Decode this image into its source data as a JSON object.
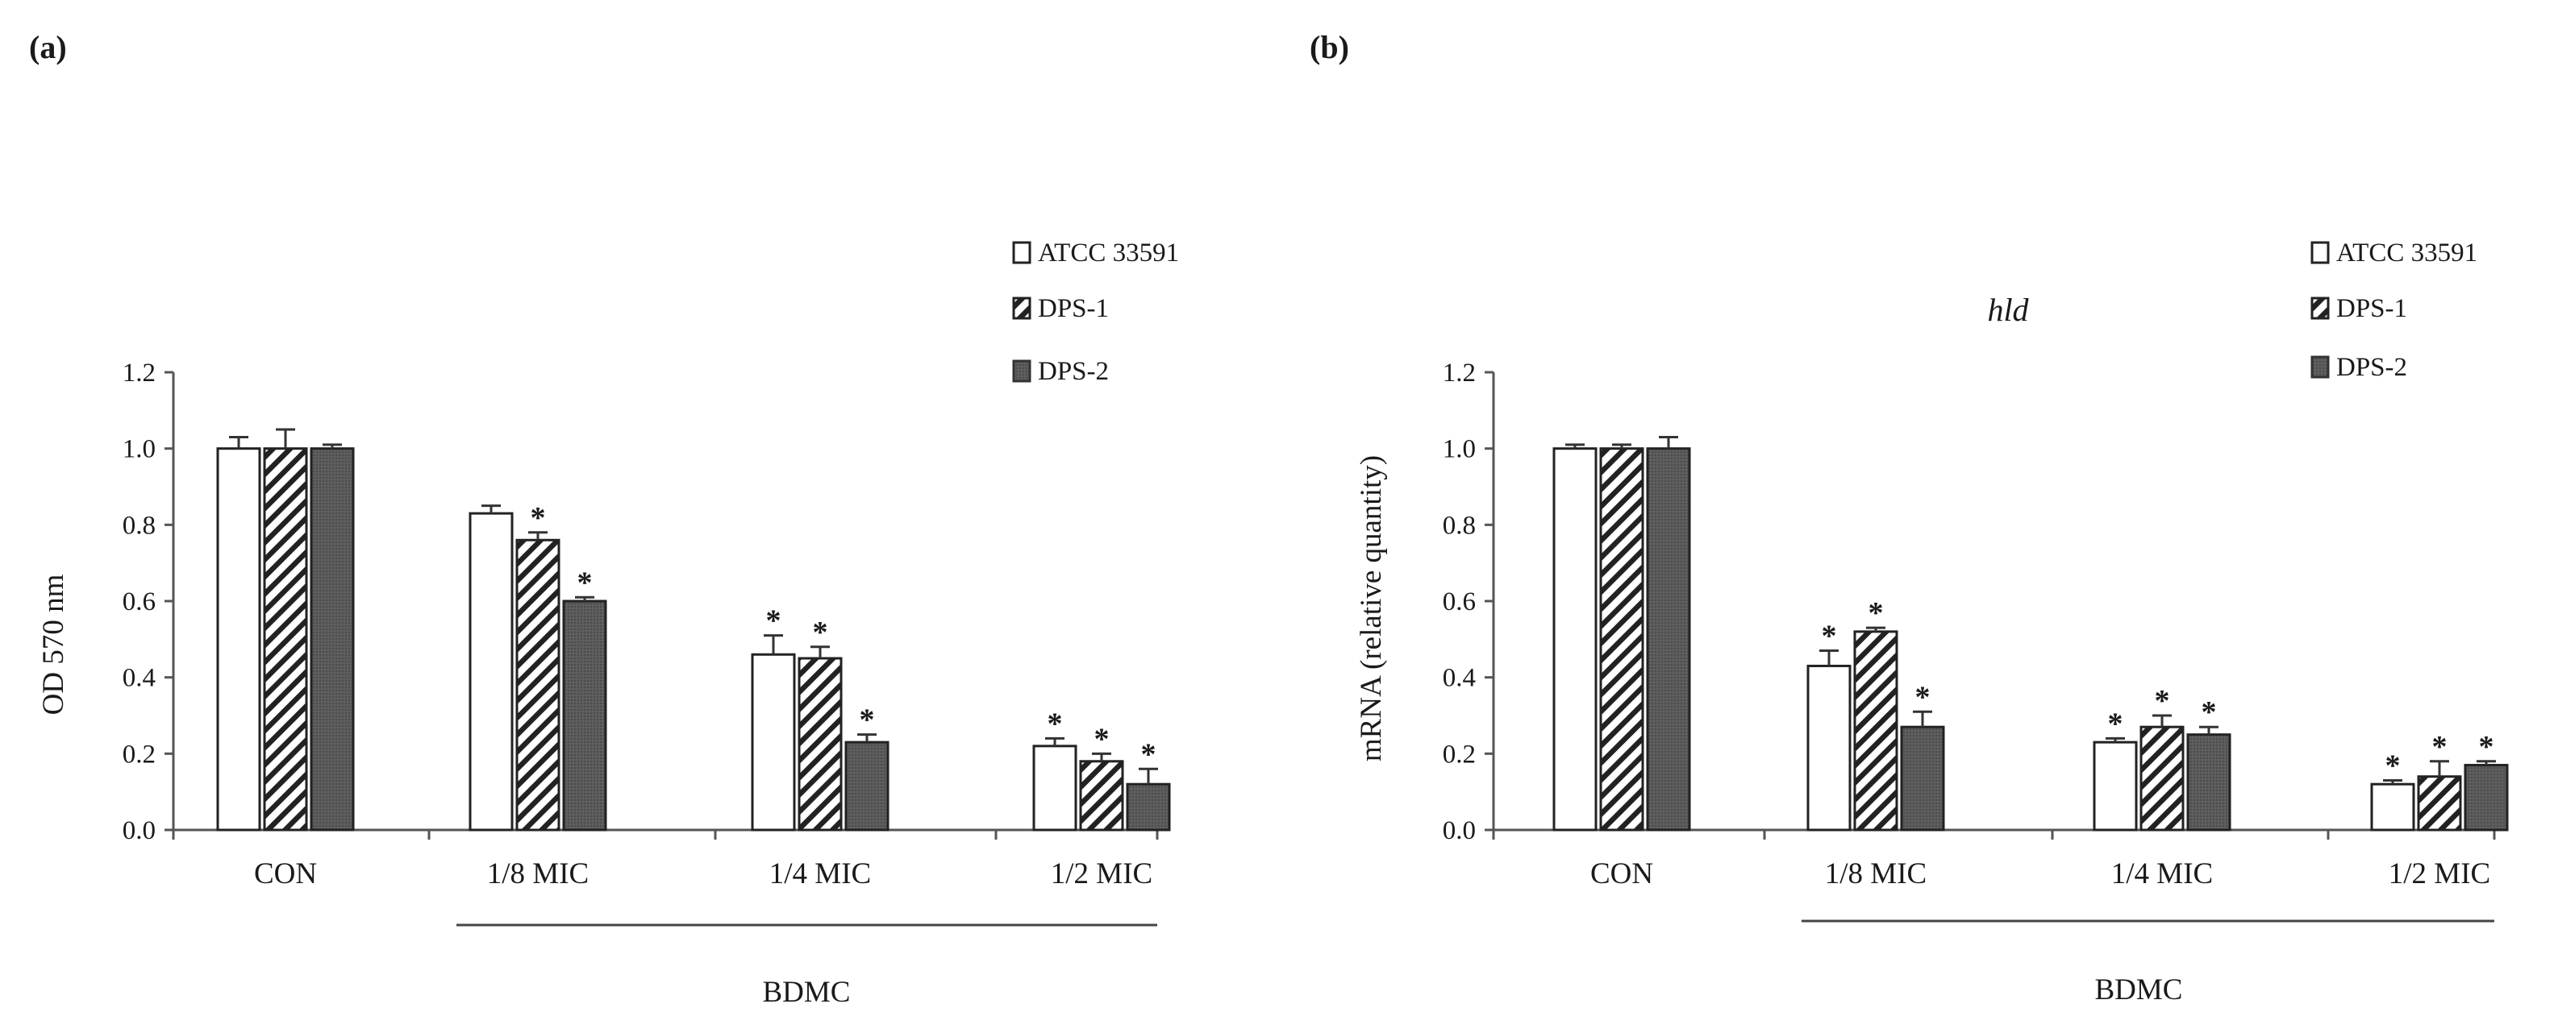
{
  "chart_data": [
    {
      "panel_label": "(a)",
      "type": "bar",
      "title": "",
      "xlabel": "",
      "ylabel": "OD 570 nm",
      "ylim": [
        0,
        1.2
      ],
      "yticks": [
        "0.0",
        "0.2",
        "0.4",
        "0.6",
        "0.8",
        "1.0",
        "1.2"
      ],
      "categories": [
        "CON",
        "1/8 MIC",
        "1/4 MIC",
        "1/2 MIC"
      ],
      "group_label": "BDMC",
      "group_span": [
        "1/8 MIC",
        "1/2 MIC"
      ],
      "legend_position": "top-right",
      "series": [
        {
          "name": "ATCC 33591",
          "fill": "white",
          "values": [
            1.0,
            0.83,
            0.46,
            0.22
          ],
          "errors": [
            0.03,
            0.02,
            0.05,
            0.02
          ],
          "significant": [
            false,
            false,
            true,
            true
          ]
        },
        {
          "name": "DPS-1",
          "fill": "hatched",
          "values": [
            1.0,
            0.76,
            0.45,
            0.18
          ],
          "errors": [
            0.05,
            0.02,
            0.03,
            0.02
          ],
          "significant": [
            false,
            true,
            true,
            true
          ]
        },
        {
          "name": "DPS-2",
          "fill": "dark",
          "values": [
            1.0,
            0.6,
            0.23,
            0.12
          ],
          "errors": [
            0.01,
            0.01,
            0.02,
            0.04
          ],
          "significant": [
            false,
            true,
            true,
            true
          ]
        }
      ]
    },
    {
      "panel_label": "(b)",
      "type": "bar",
      "title": "hld",
      "xlabel": "",
      "ylabel": "mRNA (relative quantity)",
      "ylim": [
        0,
        1.2
      ],
      "yticks": [
        "0.0",
        "0.2",
        "0.4",
        "0.6",
        "0.8",
        "1.0",
        "1.2"
      ],
      "categories": [
        "CON",
        "1/8 MIC",
        "1/4 MIC",
        "1/2 MIC"
      ],
      "group_label": "BDMC",
      "group_span": [
        "1/8 MIC",
        "1/2 MIC"
      ],
      "legend_position": "top-right",
      "series": [
        {
          "name": "ATCC 33591",
          "fill": "white",
          "values": [
            1.0,
            0.43,
            0.23,
            0.12
          ],
          "errors": [
            0.01,
            0.04,
            0.01,
            0.01
          ],
          "significant": [
            false,
            true,
            true,
            true
          ]
        },
        {
          "name": "DPS-1",
          "fill": "hatched",
          "values": [
            1.0,
            0.52,
            0.27,
            0.14
          ],
          "errors": [
            0.01,
            0.01,
            0.03,
            0.04
          ],
          "significant": [
            false,
            true,
            true,
            true
          ]
        },
        {
          "name": "DPS-2",
          "fill": "dark",
          "values": [
            1.0,
            0.27,
            0.25,
            0.17
          ],
          "errors": [
            0.03,
            0.04,
            0.02,
            0.01
          ],
          "significant": [
            false,
            true,
            true,
            true
          ]
        }
      ]
    }
  ],
  "significance_marker": "*"
}
